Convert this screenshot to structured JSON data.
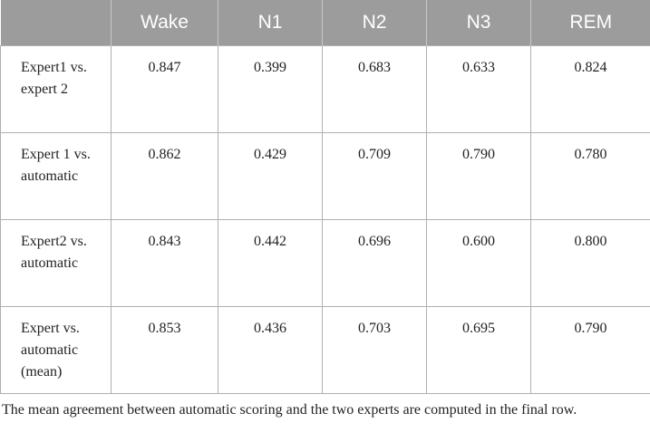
{
  "table": {
    "columns": [
      "Wake",
      "N1",
      "N2",
      "N3",
      "REM"
    ],
    "rows": [
      {
        "label": "Expert1 vs. expert 2",
        "values": [
          "0.847",
          "0.399",
          "0.683",
          "0.633",
          "0.824"
        ]
      },
      {
        "label": "Expert 1 vs. automatic",
        "values": [
          "0.862",
          "0.429",
          "0.709",
          "0.790",
          "0.780"
        ]
      },
      {
        "label": "Expert2 vs. automatic",
        "values": [
          "0.843",
          "0.442",
          "0.696",
          "0.600",
          "0.800"
        ]
      },
      {
        "label": "Expert vs. automatic (mean)",
        "values": [
          "0.853",
          "0.436",
          "0.703",
          "0.695",
          "0.790"
        ]
      }
    ]
  },
  "footnote": "The mean agreement between automatic scoring and the two experts are computed in the final row."
}
